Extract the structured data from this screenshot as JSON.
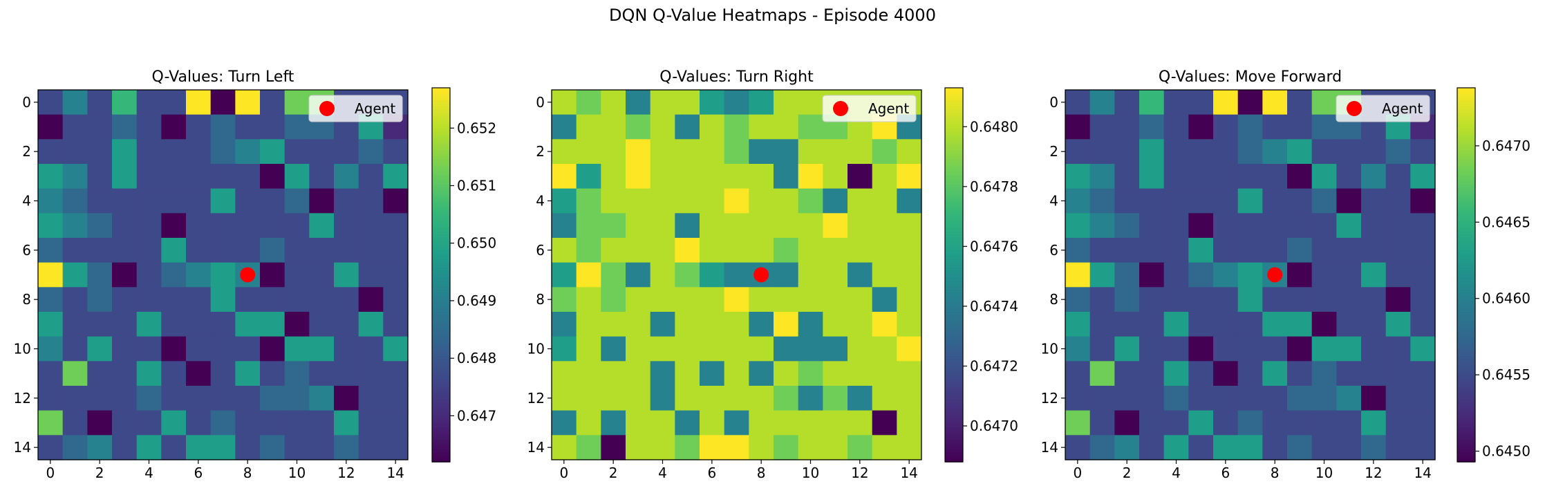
{
  "title": "DQN Q-Value Heatmaps - Episode 4000",
  "colors": {
    "agent": "#ff0000",
    "axis": "#000000",
    "colormap": "viridis"
  },
  "chart_data": [
    {
      "type": "heatmap",
      "title": "Q-Values: Turn Left",
      "x_ticks": [
        "0",
        "2",
        "4",
        "6",
        "8",
        "10",
        "12",
        "14"
      ],
      "y_ticks": [
        "0",
        "2",
        "4",
        "6",
        "8",
        "10",
        "12",
        "14"
      ],
      "xlim": [
        -0.5,
        14.5
      ],
      "ylim": [
        14.5,
        -0.5
      ],
      "legend": {
        "label": "Agent",
        "placement": "top-right"
      },
      "agent": {
        "x": 8,
        "y": 7
      },
      "colorbar": {
        "min": 0.6462,
        "max": 0.6527,
        "ticks": [
          "0.647",
          "0.648",
          "0.649",
          "0.650",
          "0.651",
          "0.652"
        ]
      },
      "grid": [
        [
          2,
          4,
          2,
          6,
          2,
          2,
          9,
          0,
          9,
          2,
          7,
          7,
          2,
          2,
          2
        ],
        [
          0,
          2,
          2,
          3,
          2,
          0,
          2,
          3,
          2,
          2,
          3,
          3,
          2,
          5,
          1
        ],
        [
          2,
          2,
          2,
          5,
          2,
          2,
          2,
          3,
          4,
          5,
          2,
          2,
          2,
          3,
          2
        ],
        [
          5,
          4,
          2,
          5,
          2,
          2,
          2,
          2,
          2,
          0,
          5,
          2,
          4,
          2,
          5
        ],
        [
          4,
          3,
          2,
          2,
          2,
          2,
          2,
          5,
          2,
          2,
          3,
          0,
          2,
          2,
          0
        ],
        [
          5,
          4,
          3,
          2,
          2,
          0,
          2,
          2,
          2,
          2,
          2,
          5,
          2,
          2,
          2
        ],
        [
          3,
          2,
          2,
          2,
          2,
          5,
          2,
          2,
          2,
          3,
          2,
          2,
          2,
          2,
          2
        ],
        [
          9,
          5,
          3,
          0,
          2,
          3,
          4,
          5,
          4,
          0,
          2,
          2,
          5,
          2,
          2
        ],
        [
          3,
          2,
          3,
          2,
          2,
          2,
          2,
          5,
          2,
          2,
          2,
          2,
          2,
          0,
          2
        ],
        [
          5,
          2,
          2,
          2,
          5,
          2,
          2,
          2,
          5,
          5,
          0,
          2,
          2,
          5,
          2
        ],
        [
          4,
          2,
          5,
          2,
          2,
          0,
          2,
          2,
          2,
          0,
          5,
          5,
          2,
          2,
          5
        ],
        [
          2,
          7,
          2,
          2,
          5,
          2,
          0,
          2,
          5,
          2,
          3,
          2,
          2,
          2,
          2
        ],
        [
          2,
          2,
          2,
          2,
          3,
          2,
          2,
          2,
          2,
          3,
          3,
          4,
          0,
          2,
          2
        ],
        [
          7,
          2,
          0,
          2,
          2,
          5,
          2,
          3,
          2,
          2,
          2,
          2,
          5,
          2,
          2
        ],
        [
          2,
          3,
          4,
          2,
          5,
          2,
          5,
          5,
          2,
          3,
          2,
          2,
          3,
          2,
          2
        ]
      ]
    },
    {
      "type": "heatmap",
      "title": "Q-Values: Turn Right",
      "x_ticks": [
        "0",
        "2",
        "4",
        "6",
        "8",
        "10",
        "12",
        "14"
      ],
      "y_ticks": [
        "0",
        "2",
        "4",
        "6",
        "8",
        "10",
        "12",
        "14"
      ],
      "xlim": [
        -0.5,
        14.5
      ],
      "ylim": [
        14.5,
        -0.5
      ],
      "legend": {
        "label": "Agent",
        "placement": "top-right"
      },
      "agent": {
        "x": 8,
        "y": 7
      },
      "colorbar": {
        "min": 0.64688,
        "max": 0.64813,
        "ticks": [
          "0.6470",
          "0.6472",
          "0.6474",
          "0.6476",
          "0.6478",
          "0.6480"
        ]
      },
      "grid": [
        [
          8,
          7,
          8,
          4,
          8,
          8,
          5,
          4,
          5,
          8,
          8,
          8,
          8,
          8,
          8
        ],
        [
          4,
          8,
          8,
          7,
          8,
          4,
          8,
          7,
          8,
          8,
          7,
          7,
          8,
          9,
          4
        ],
        [
          8,
          8,
          8,
          9,
          8,
          8,
          8,
          7,
          4,
          4,
          8,
          8,
          8,
          7,
          8
        ],
        [
          9,
          5,
          8,
          9,
          8,
          8,
          8,
          8,
          8,
          4,
          9,
          8,
          0,
          8,
          9
        ],
        [
          5,
          7,
          8,
          8,
          8,
          8,
          8,
          9,
          8,
          8,
          7,
          4,
          8,
          8,
          4
        ],
        [
          4,
          7,
          7,
          8,
          8,
          4,
          8,
          8,
          8,
          8,
          8,
          9,
          8,
          8,
          8
        ],
        [
          8,
          7,
          8,
          8,
          8,
          9,
          8,
          8,
          8,
          7,
          8,
          8,
          8,
          8,
          8
        ],
        [
          5,
          9,
          7,
          4,
          8,
          7,
          5,
          4,
          4,
          4,
          8,
          8,
          4,
          8,
          8
        ],
        [
          7,
          8,
          7,
          8,
          8,
          8,
          8,
          9,
          8,
          8,
          8,
          8,
          8,
          4,
          8
        ],
        [
          4,
          8,
          8,
          8,
          4,
          8,
          8,
          8,
          4,
          9,
          4,
          8,
          8,
          9,
          8
        ],
        [
          5,
          8,
          4,
          8,
          8,
          8,
          8,
          8,
          8,
          4,
          4,
          4,
          8,
          8,
          9
        ],
        [
          8,
          8,
          8,
          8,
          4,
          8,
          4,
          8,
          4,
          8,
          7,
          8,
          8,
          8,
          8
        ],
        [
          8,
          8,
          8,
          8,
          4,
          8,
          8,
          8,
          8,
          7,
          4,
          7,
          4,
          8,
          8
        ],
        [
          4,
          8,
          4,
          8,
          8,
          4,
          8,
          4,
          8,
          8,
          8,
          8,
          8,
          0,
          8
        ],
        [
          8,
          7,
          0,
          8,
          8,
          7,
          9,
          9,
          8,
          7,
          8,
          8,
          7,
          8,
          8
        ]
      ]
    },
    {
      "type": "heatmap",
      "title": "Q-Values: Move Forward",
      "x_ticks": [
        "0",
        "2",
        "4",
        "6",
        "8",
        "10",
        "12",
        "14"
      ],
      "y_ticks": [
        "0",
        "2",
        "4",
        "6",
        "8",
        "10",
        "12",
        "14"
      ],
      "xlim": [
        -0.5,
        14.5
      ],
      "ylim": [
        14.5,
        -0.5
      ],
      "legend": {
        "label": "Agent",
        "placement": "top-right"
      },
      "agent": {
        "x": 8,
        "y": 7
      },
      "colorbar": {
        "min": 0.64493,
        "max": 0.64738,
        "ticks": [
          "0.6450",
          "0.6455",
          "0.6460",
          "0.6465",
          "0.6470"
        ]
      },
      "grid": [
        [
          2,
          4,
          2,
          6,
          2,
          2,
          9,
          0,
          9,
          2,
          7,
          7,
          2,
          2,
          2
        ],
        [
          0,
          2,
          2,
          3,
          2,
          0,
          2,
          3,
          2,
          2,
          3,
          3,
          2,
          5,
          1
        ],
        [
          2,
          2,
          2,
          5,
          2,
          2,
          2,
          3,
          4,
          5,
          2,
          2,
          2,
          3,
          2
        ],
        [
          5,
          4,
          2,
          5,
          2,
          2,
          2,
          2,
          2,
          0,
          5,
          2,
          4,
          2,
          5
        ],
        [
          4,
          3,
          2,
          2,
          2,
          2,
          2,
          5,
          2,
          2,
          3,
          0,
          2,
          2,
          0
        ],
        [
          5,
          4,
          3,
          2,
          2,
          0,
          2,
          2,
          2,
          2,
          2,
          5,
          2,
          2,
          2
        ],
        [
          3,
          2,
          2,
          2,
          2,
          5,
          2,
          2,
          2,
          3,
          2,
          2,
          2,
          2,
          2
        ],
        [
          9,
          5,
          3,
          0,
          2,
          3,
          4,
          5,
          4,
          0,
          2,
          2,
          5,
          2,
          2
        ],
        [
          3,
          2,
          3,
          2,
          2,
          2,
          2,
          5,
          2,
          2,
          2,
          2,
          2,
          0,
          2
        ],
        [
          5,
          2,
          2,
          2,
          5,
          2,
          2,
          2,
          5,
          5,
          0,
          2,
          2,
          5,
          2
        ],
        [
          4,
          2,
          5,
          2,
          2,
          0,
          2,
          2,
          2,
          0,
          5,
          5,
          2,
          2,
          5
        ],
        [
          2,
          7,
          2,
          2,
          5,
          2,
          0,
          2,
          5,
          2,
          3,
          2,
          2,
          2,
          2
        ],
        [
          2,
          2,
          2,
          2,
          3,
          2,
          2,
          2,
          2,
          3,
          3,
          4,
          0,
          2,
          2
        ],
        [
          7,
          2,
          0,
          2,
          2,
          5,
          2,
          3,
          2,
          2,
          2,
          2,
          5,
          2,
          2
        ],
        [
          2,
          3,
          4,
          2,
          5,
          2,
          5,
          5,
          2,
          3,
          2,
          2,
          3,
          2,
          2
        ]
      ]
    }
  ]
}
